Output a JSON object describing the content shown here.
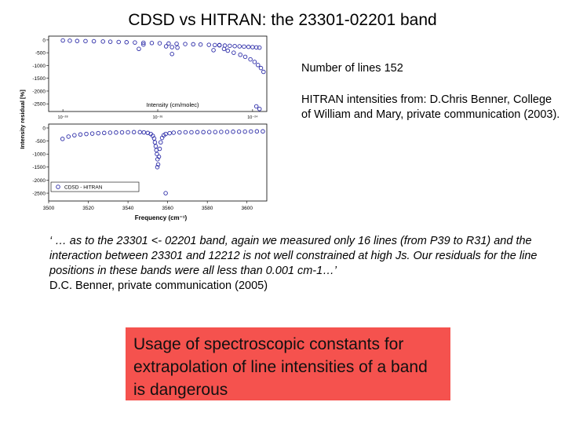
{
  "slide": {
    "title": "CDSD vs HITRAN: the 23301-02201 band",
    "info_lines": "Number of lines 152",
    "info_source": "HITRAN intensities from: D.Chris Benner, College of William and Mary, private communication (2003).",
    "quote": "‘ … as to the 23301 <- 02201 band, again we measured only 16 lines (from P39 to R31)  and the interaction between 23301 and 12212 is not well constrained at high Js. Our residuals for the line positions in these bands were all less than 0.001 cm-1…’",
    "quote_source": "D.C. Benner, private communication (2005)",
    "warning": "Usage of spectroscopic constants for extrapolation of line intensities of a band is dangerous"
  },
  "chart_data": [
    {
      "type": "scatter",
      "panel": "top",
      "xlabel": "Intensity (cm/molec)",
      "x_scale": "log",
      "x_tick_labels": [
        "10⁻²⁸",
        "10⁻²⁶",
        "10⁻²⁴"
      ],
      "ylabel": "Intensity residual [%]",
      "y_ticks": [
        0,
        -500,
        -1000,
        -1500,
        -2000,
        -2500
      ],
      "ylim": [
        -2800,
        150
      ],
      "colors": {
        "marker": "#2c2ca8"
      },
      "series": [
        {
          "x": [
            1e-28,
            1.4e-28,
            2e-28,
            3e-28,
            4.5e-28,
            7e-28,
            1e-27,
            1.5e-27,
            2.2e-27,
            3.3e-27,
            5e-27,
            7.5e-27,
            1.1e-26,
            1.7e-26,
            2.5e-26,
            3.8e-26,
            5.6e-26,
            8e-26,
            1.2e-25,
            1.6e-25,
            2e-25,
            2.6e-25,
            3.3e-25,
            4.2e-25,
            5.3e-25,
            6.6e-25,
            8.2e-25,
            1e-24,
            1.2e-24,
            1.4e-24,
            5e-27,
            1.5e-26,
            2e-26,
            2.6e-26,
            2e-25,
            2.5e-25,
            3e-25,
            4e-25,
            5.5e-25,
            7e-25,
            9e-25,
            1.1e-24,
            1.3e-24,
            1.5e-24,
            1.7e-24,
            4e-27,
            2e-26,
            1.5e-25,
            1.2e-24,
            1.4e-24
          ],
          "y": [
            -20,
            -30,
            -40,
            -45,
            -50,
            -60,
            -70,
            -80,
            -90,
            -100,
            -110,
            -120,
            -130,
            -140,
            -150,
            -160,
            -170,
            -180,
            -190,
            -200,
            -210,
            -220,
            -230,
            -240,
            -250,
            -260,
            -270,
            -280,
            -290,
            -300,
            -180,
            -250,
            -280,
            -300,
            -200,
            -350,
            -420,
            -500,
            -580,
            -660,
            -760,
            -860,
            -980,
            -1100,
            -1250,
            -350,
            -550,
            -400,
            -2600,
            -2700
          ]
        }
      ]
    },
    {
      "type": "scatter",
      "panel": "bottom",
      "xlabel": "Frequency (cm⁻¹)",
      "x_ticks": [
        3500,
        3520,
        3540,
        3560,
        3580,
        3600
      ],
      "xlim": [
        3500,
        3610
      ],
      "ylabel": "Intensity residual [%]",
      "y_ticks": [
        0,
        -500,
        -1000,
        -1500,
        -2000,
        -2500
      ],
      "ylim": [
        -2800,
        150
      ],
      "legend": "CDSD - HITRAN",
      "legend_position": "bottom-left",
      "colors": {
        "marker": "#2c2ca8"
      },
      "series": [
        {
          "name": "CDSD - HITRAN",
          "x": [
            3507,
            3510,
            3513,
            3516,
            3519,
            3522,
            3525,
            3528,
            3531,
            3534,
            3537,
            3540,
            3543,
            3546,
            3548,
            3550,
            3551.5,
            3552.5,
            3553.2,
            3553.6,
            3554,
            3554.3,
            3554.6,
            3554.9,
            3555.2,
            3555.6,
            3556,
            3556.5,
            3557.2,
            3558,
            3559,
            3561,
            3563,
            3566,
            3569,
            3572,
            3575,
            3578,
            3581,
            3584,
            3587,
            3590,
            3593,
            3596,
            3599,
            3602,
            3605,
            3608,
            3559,
            3554.8
          ],
          "y": [
            -420,
            -330,
            -280,
            -250,
            -230,
            -215,
            -200,
            -190,
            -180,
            -175,
            -170,
            -165,
            -160,
            -160,
            -170,
            -190,
            -230,
            -300,
            -400,
            -550,
            -700,
            -850,
            -1000,
            -1200,
            -1400,
            -1100,
            -800,
            -550,
            -380,
            -280,
            -230,
            -200,
            -180,
            -170,
            -165,
            -165,
            -160,
            -160,
            -155,
            -155,
            -150,
            -150,
            -145,
            -140,
            -140,
            -135,
            -130,
            -130,
            -2500,
            -1500
          ]
        }
      ]
    }
  ]
}
